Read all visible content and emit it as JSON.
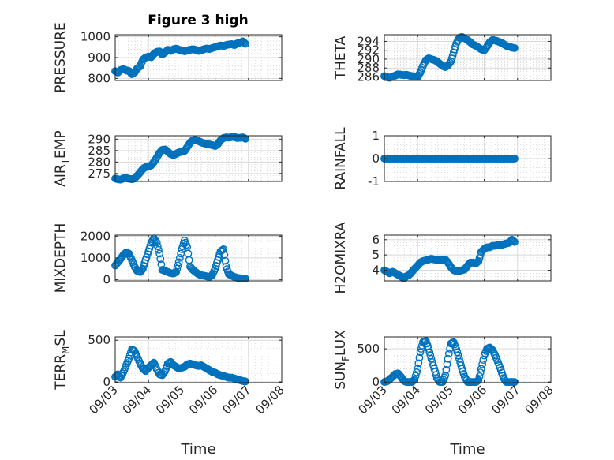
{
  "figure_title": "Figure 3 high",
  "colors": {
    "marker": "#0072BD",
    "axis": "#262626",
    "grid": "#d9d9d9"
  },
  "chart_data": [
    {
      "type": "scatter",
      "title": "Figure 3 high",
      "ylabel": "PRESSURE",
      "ylabel_parts": [
        "PRESSURE"
      ],
      "xlabel": "",
      "xlim": [
        0,
        4.2
      ],
      "ylim": [
        790,
        1010
      ],
      "yticks": [
        800,
        900,
        1000
      ],
      "ytick_labels": [
        "800",
        "900",
        "1000"
      ],
      "xticks": [
        0,
        1,
        2,
        3,
        4,
        5
      ],
      "xtick_labels": [],
      "grid": true,
      "x": [
        0,
        0.08,
        0.16,
        0.25,
        0.33,
        0.41,
        0.5,
        0.58,
        0.66,
        0.75,
        0.83,
        0.91,
        1.0,
        1.08,
        1.16,
        1.25,
        1.33,
        1.41,
        1.5,
        1.58,
        1.66,
        1.75,
        1.83,
        1.91,
        2.0,
        2.08,
        2.16,
        2.25,
        2.33,
        2.41,
        2.5,
        2.58,
        2.66,
        2.75,
        2.83,
        2.91,
        3.0,
        3.08,
        3.16,
        3.25,
        3.33,
        3.41,
        3.5,
        3.58,
        3.66,
        3.75,
        3.83,
        3.91
      ],
      "y": [
        835,
        828,
        840,
        845,
        838,
        836,
        820,
        828,
        848,
        858,
        890,
        900,
        905,
        902,
        918,
        928,
        930,
        915,
        925,
        938,
        932,
        940,
        943,
        938,
        935,
        930,
        934,
        938,
        940,
        938,
        932,
        935,
        940,
        944,
        941,
        946,
        950,
        955,
        958,
        956,
        960,
        963,
        965,
        960,
        968,
        972,
        978,
        966
      ]
    },
    {
      "type": "scatter",
      "ylabel": "THETA",
      "ylabel_parts": [
        "THETA"
      ],
      "xlabel": "",
      "xlim": [
        0,
        4.2
      ],
      "ylim": [
        285.2,
        295.5
      ],
      "yticks": [
        286,
        288,
        290,
        292,
        294
      ],
      "ytick_labels": [
        "286",
        "288",
        "290",
        "292",
        "294"
      ],
      "xticks": [
        0,
        1,
        2,
        3,
        4,
        5
      ],
      "xtick_labels": [],
      "grid": true,
      "x": [
        0,
        0.08,
        0.16,
        0.25,
        0.33,
        0.41,
        0.5,
        0.58,
        0.66,
        0.75,
        0.83,
        0.91,
        1.0,
        1.08,
        1.16,
        1.25,
        1.33,
        1.41,
        1.5,
        1.58,
        1.66,
        1.75,
        1.83,
        1.91,
        2.0,
        2.08,
        2.16,
        2.25,
        2.33,
        2.41,
        2.5,
        2.58,
        2.66,
        2.75,
        2.83,
        2.91,
        3.0,
        3.08,
        3.16,
        3.25,
        3.33,
        3.41,
        3.5,
        3.58,
        3.66,
        3.75,
        3.83,
        3.91
      ],
      "y": [
        286.2,
        286.0,
        285.8,
        286.1,
        286.3,
        286.6,
        286.5,
        286.4,
        286.5,
        286.3,
        286.2,
        286.1,
        286.0,
        287.0,
        288.5,
        289.8,
        290.2,
        290.0,
        289.8,
        289.5,
        289.0,
        288.5,
        288.2,
        288.6,
        289.5,
        291.5,
        293.5,
        294.8,
        295.0,
        294.7,
        294.3,
        293.8,
        293.3,
        293.0,
        292.6,
        292.2,
        292.0,
        292.8,
        293.8,
        294.3,
        294.2,
        294.0,
        293.7,
        293.4,
        293.0,
        292.8,
        292.6,
        292.5
      ]
    },
    {
      "type": "scatter",
      "ylabel": "AIR_TEMP",
      "ylabel_parts": [
        "AIR",
        "T",
        "EMP"
      ],
      "xlabel": "",
      "xlim": [
        0,
        4.2
      ],
      "ylim": [
        271.5,
        291.5
      ],
      "yticks": [
        275,
        280,
        285,
        290
      ],
      "ytick_labels": [
        "275",
        "280",
        "285",
        "290"
      ],
      "xticks": [
        0,
        1,
        2,
        3,
        4,
        5
      ],
      "xtick_labels": [],
      "grid": true,
      "x": [
        0,
        0.08,
        0.16,
        0.25,
        0.33,
        0.41,
        0.5,
        0.58,
        0.66,
        0.75,
        0.83,
        0.91,
        1.0,
        1.08,
        1.16,
        1.25,
        1.33,
        1.41,
        1.5,
        1.58,
        1.66,
        1.75,
        1.83,
        1.91,
        2.0,
        2.08,
        2.16,
        2.25,
        2.33,
        2.41,
        2.5,
        2.58,
        2.66,
        2.75,
        2.83,
        2.91,
        3.0,
        3.08,
        3.16,
        3.25,
        3.33,
        3.41,
        3.5,
        3.58,
        3.66,
        3.75,
        3.83,
        3.91
      ],
      "y": [
        272.8,
        272.5,
        272.3,
        272.9,
        273.0,
        272.7,
        272.5,
        272.8,
        274.0,
        275.5,
        277.0,
        277.8,
        278.0,
        278.5,
        280.0,
        282.0,
        284.0,
        285.3,
        285.5,
        284.5,
        283.5,
        283.0,
        283.6,
        284.2,
        284.5,
        284.8,
        286.5,
        288.5,
        289.5,
        289.8,
        289.2,
        288.6,
        288.2,
        287.9,
        287.7,
        287.4,
        287.0,
        287.8,
        289.5,
        290.5,
        290.8,
        290.7,
        290.9,
        291.0,
        290.5,
        290.6,
        290.8,
        290.2
      ]
    },
    {
      "type": "scatter",
      "ylabel": "RAINFALL",
      "ylabel_parts": [
        "RAINFALL"
      ],
      "xlabel": "",
      "xlim": [
        0,
        4.2
      ],
      "ylim": [
        -1,
        1
      ],
      "yticks": [
        -1,
        0,
        1
      ],
      "ytick_labels": [
        "-1",
        "0",
        "1"
      ],
      "xticks": [
        0,
        1,
        2,
        3,
        4,
        5
      ],
      "xtick_labels": [],
      "grid": true,
      "x": [
        0,
        0.08,
        0.16,
        0.25,
        0.33,
        0.41,
        0.5,
        0.58,
        0.66,
        0.75,
        0.83,
        0.91,
        1.0,
        1.08,
        1.16,
        1.25,
        1.33,
        1.41,
        1.5,
        1.58,
        1.66,
        1.75,
        1.83,
        1.91,
        2.0,
        2.08,
        2.16,
        2.25,
        2.33,
        2.41,
        2.5,
        2.58,
        2.66,
        2.75,
        2.83,
        2.91,
        3.0,
        3.08,
        3.16,
        3.25,
        3.33,
        3.41,
        3.5,
        3.58,
        3.66,
        3.75,
        3.83,
        3.91
      ],
      "y": [
        0,
        0,
        0,
        0,
        0,
        0,
        0,
        0,
        0,
        0,
        0,
        0,
        0,
        0,
        0,
        0,
        0,
        0,
        0,
        0,
        0,
        0,
        0,
        0,
        0,
        0,
        0,
        0,
        0,
        0,
        0,
        0,
        0,
        0,
        0,
        0,
        0,
        0,
        0,
        0,
        0,
        0,
        0,
        0,
        0,
        0,
        0,
        0
      ]
    },
    {
      "type": "scatter",
      "ylabel": "MIXDEPTH",
      "ylabel_parts": [
        "MIXDEPTH"
      ],
      "xlabel": "",
      "xlim": [
        0,
        4.2
      ],
      "ylim": [
        -60,
        2050
      ],
      "yticks": [
        0,
        1000,
        2000
      ],
      "ytick_labels": [
        "0",
        "1000",
        "2000"
      ],
      "xticks": [
        0,
        1,
        2,
        3,
        4,
        5
      ],
      "xtick_labels": [],
      "grid": true,
      "x": [
        0,
        0.08,
        0.16,
        0.25,
        0.33,
        0.41,
        0.5,
        0.58,
        0.66,
        0.75,
        0.83,
        0.91,
        1.0,
        1.08,
        1.16,
        1.25,
        1.33,
        1.41,
        1.5,
        1.58,
        1.66,
        1.75,
        1.83,
        1.91,
        2.0,
        2.08,
        2.16,
        2.25,
        2.33,
        2.41,
        2.5,
        2.58,
        2.66,
        2.75,
        2.83,
        2.91,
        3.0,
        3.08,
        3.16,
        3.25,
        3.33,
        3.41,
        3.5,
        3.58,
        3.66,
        3.75,
        3.83,
        3.91
      ],
      "y": [
        650,
        800,
        950,
        1150,
        1250,
        1200,
        900,
        600,
        400,
        350,
        500,
        900,
        1300,
        1700,
        1900,
        1700,
        1200,
        450,
        400,
        350,
        300,
        280,
        350,
        800,
        1400,
        1800,
        1500,
        600,
        450,
        350,
        250,
        200,
        180,
        150,
        120,
        200,
        500,
        900,
        1300,
        1400,
        600,
        250,
        180,
        120,
        80,
        60,
        50,
        40
      ]
    },
    {
      "type": "scatter",
      "ylabel": "H2OMIXRA",
      "ylabel_parts": [
        "H2OMIXRA"
      ],
      "xlabel": "",
      "xlim": [
        0,
        4.2
      ],
      "ylim": [
        3.3,
        6.3
      ],
      "yticks": [
        4,
        5,
        6
      ],
      "ytick_labels": [
        "4",
        "5",
        "6"
      ],
      "xticks": [
        0,
        1,
        2,
        3,
        4,
        5
      ],
      "xtick_labels": [],
      "grid": true,
      "x": [
        0,
        0.08,
        0.16,
        0.25,
        0.33,
        0.41,
        0.5,
        0.58,
        0.66,
        0.75,
        0.83,
        0.91,
        1.0,
        1.08,
        1.16,
        1.25,
        1.33,
        1.41,
        1.5,
        1.58,
        1.66,
        1.75,
        1.83,
        1.91,
        2.0,
        2.08,
        2.16,
        2.25,
        2.33,
        2.41,
        2.5,
        2.58,
        2.66,
        2.75,
        2.83,
        2.91,
        3.0,
        3.08,
        3.16,
        3.25,
        3.33,
        3.41,
        3.5,
        3.58,
        3.66,
        3.75,
        3.83,
        3.91
      ],
      "y": [
        4.0,
        3.9,
        3.8,
        3.9,
        3.8,
        3.7,
        3.6,
        3.45,
        3.6,
        3.7,
        3.9,
        4.1,
        4.3,
        4.5,
        4.6,
        4.65,
        4.7,
        4.75,
        4.7,
        4.7,
        4.65,
        4.7,
        4.7,
        4.5,
        4.2,
        4.0,
        3.95,
        3.95,
        4.0,
        4.05,
        4.3,
        4.5,
        4.5,
        4.45,
        4.6,
        5.2,
        5.4,
        5.5,
        5.5,
        5.6,
        5.6,
        5.65,
        5.65,
        5.7,
        5.75,
        5.8,
        6.0,
        5.85
      ]
    },
    {
      "type": "scatter",
      "ylabel": "TERR_MSL",
      "ylabel_parts": [
        "TERR",
        "M",
        "SL"
      ],
      "xlabel": "Time",
      "xlim": [
        0,
        5
      ],
      "ylim": [
        -10,
        540
      ],
      "yticks": [
        0,
        500
      ],
      "ytick_labels": [
        "0",
        "500"
      ],
      "xticks": [
        0,
        1,
        2,
        3,
        4,
        5
      ],
      "xtick_labels": [
        "09/03",
        "09/04",
        "09/05",
        "09/06",
        "09/07",
        "09/08"
      ],
      "grid": true,
      "x": [
        0,
        0.08,
        0.16,
        0.25,
        0.33,
        0.41,
        0.5,
        0.58,
        0.66,
        0.75,
        0.83,
        0.91,
        1.0,
        1.08,
        1.16,
        1.25,
        1.33,
        1.41,
        1.5,
        1.58,
        1.66,
        1.75,
        1.83,
        1.91,
        2.0,
        2.08,
        2.16,
        2.25,
        2.33,
        2.41,
        2.5,
        2.58,
        2.66,
        2.75,
        2.83,
        2.91,
        3.0,
        3.08,
        3.16,
        3.25,
        3.33,
        3.41,
        3.5,
        3.58,
        3.66,
        3.75,
        3.83,
        3.91
      ],
      "y": [
        60,
        90,
        50,
        120,
        200,
        280,
        390,
        370,
        300,
        220,
        160,
        130,
        170,
        200,
        230,
        150,
        90,
        80,
        130,
        220,
        240,
        200,
        180,
        160,
        170,
        180,
        210,
        220,
        210,
        200,
        190,
        200,
        180,
        160,
        140,
        120,
        110,
        90,
        80,
        70,
        60,
        50,
        50,
        40,
        30,
        20,
        10,
        5
      ]
    },
    {
      "type": "scatter",
      "ylabel": "SUN_FLUX",
      "ylabel_parts": [
        "SUN",
        "F",
        "LUX"
      ],
      "xlabel": "Time",
      "xlim": [
        0,
        5
      ],
      "ylim": [
        -10,
        680
      ],
      "yticks": [
        0,
        500
      ],
      "ytick_labels": [
        "0",
        "500"
      ],
      "xticks": [
        0,
        1,
        2,
        3,
        4,
        5
      ],
      "xtick_labels": [
        "09/03",
        "09/04",
        "09/05",
        "09/06",
        "09/07",
        "09/08"
      ],
      "grid": true,
      "x": [
        0,
        0.08,
        0.16,
        0.25,
        0.33,
        0.41,
        0.5,
        0.58,
        0.66,
        0.75,
        0.83,
        0.91,
        1.0,
        1.08,
        1.16,
        1.25,
        1.33,
        1.41,
        1.5,
        1.58,
        1.66,
        1.75,
        1.83,
        1.91,
        2.0,
        2.08,
        2.16,
        2.25,
        2.33,
        2.41,
        2.5,
        2.58,
        2.66,
        2.75,
        2.83,
        2.91,
        3.0,
        3.08,
        3.16,
        3.25,
        3.33,
        3.41,
        3.5,
        3.58,
        3.66,
        3.75,
        3.83,
        3.91
      ],
      "y": [
        0,
        10,
        40,
        80,
        120,
        130,
        80,
        20,
        0,
        0,
        0,
        40,
        200,
        450,
        600,
        620,
        500,
        350,
        200,
        60,
        0,
        0,
        100,
        350,
        580,
        600,
        500,
        350,
        200,
        80,
        0,
        0,
        0,
        0,
        30,
        200,
        400,
        500,
        520,
        480,
        400,
        300,
        180,
        60,
        0,
        0,
        0,
        0
      ]
    }
  ]
}
